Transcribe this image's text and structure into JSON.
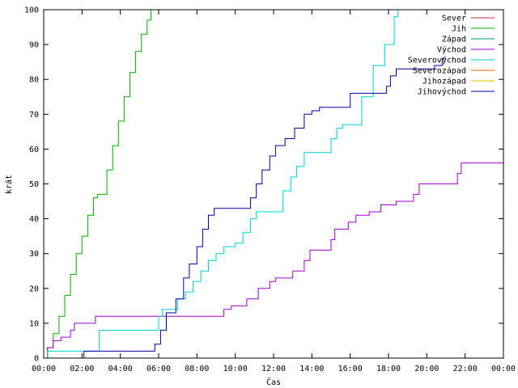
{
  "chart_data": {
    "type": "line",
    "xlabel": "Čas",
    "ylabel": "krát",
    "xlim": [
      0,
      24
    ],
    "ylim": [
      0,
      100
    ],
    "grid": false,
    "legend_position": "top-right",
    "x_ticks": [
      {
        "v": 0,
        "label": "00:00"
      },
      {
        "v": 2,
        "label": "02:00"
      },
      {
        "v": 4,
        "label": "04:00"
      },
      {
        "v": 6,
        "label": "06:00"
      },
      {
        "v": 8,
        "label": "08:00"
      },
      {
        "v": 10,
        "label": "10:00"
      },
      {
        "v": 12,
        "label": "12:00"
      },
      {
        "v": 14,
        "label": "14:00"
      },
      {
        "v": 16,
        "label": "16:00"
      },
      {
        "v": 18,
        "label": "18:00"
      },
      {
        "v": 20,
        "label": "20:00"
      },
      {
        "v": 22,
        "label": "22:00"
      },
      {
        "v": 24,
        "label": "00:00"
      }
    ],
    "y_ticks": [
      {
        "v": 0,
        "label": "0"
      },
      {
        "v": 10,
        "label": "10"
      },
      {
        "v": 20,
        "label": "20"
      },
      {
        "v": 30,
        "label": "30"
      },
      {
        "v": 40,
        "label": "40"
      },
      {
        "v": 50,
        "label": "50"
      },
      {
        "v": 60,
        "label": "60"
      },
      {
        "v": 70,
        "label": "70"
      },
      {
        "v": 80,
        "label": "80"
      },
      {
        "v": 90,
        "label": "90"
      },
      {
        "v": 100,
        "label": "100"
      }
    ],
    "series": [
      {
        "name": "Sever",
        "color": "#c8283c",
        "points": []
      },
      {
        "name": "Jih",
        "color": "#00b000",
        "points": [
          [
            0,
            0
          ],
          [
            0.2,
            3
          ],
          [
            0.5,
            7
          ],
          [
            0.8,
            12
          ],
          [
            1.1,
            18
          ],
          [
            1.4,
            24
          ],
          [
            1.7,
            30
          ],
          [
            2.0,
            35
          ],
          [
            2.3,
            41
          ],
          [
            2.6,
            46
          ],
          [
            2.8,
            47
          ],
          [
            3.0,
            47
          ],
          [
            3.3,
            54
          ],
          [
            3.6,
            61
          ],
          [
            3.9,
            68
          ],
          [
            4.2,
            75
          ],
          [
            4.5,
            82
          ],
          [
            4.8,
            88
          ],
          [
            5.1,
            93
          ],
          [
            5.4,
            97
          ],
          [
            5.6,
            100
          ]
        ]
      },
      {
        "name": "Západ",
        "color": "#008c8c",
        "points": []
      },
      {
        "name": "Východ",
        "color": "#a000c8",
        "points": [
          [
            0,
            0
          ],
          [
            0.2,
            3
          ],
          [
            0.5,
            5
          ],
          [
            0.9,
            6
          ],
          [
            1.4,
            8
          ],
          [
            1.6,
            10
          ],
          [
            2.7,
            12
          ],
          [
            9.2,
            12
          ],
          [
            9.4,
            14
          ],
          [
            9.8,
            15
          ],
          [
            10.6,
            17
          ],
          [
            11.2,
            20
          ],
          [
            11.8,
            22
          ],
          [
            12.1,
            23
          ],
          [
            13.0,
            25
          ],
          [
            13.6,
            28
          ],
          [
            13.9,
            31
          ],
          [
            15.0,
            34
          ],
          [
            15.2,
            37
          ],
          [
            15.9,
            39
          ],
          [
            16.3,
            41
          ],
          [
            17.0,
            42
          ],
          [
            17.6,
            44
          ],
          [
            18.4,
            45
          ],
          [
            19.3,
            47
          ],
          [
            19.6,
            50
          ],
          [
            21.3,
            50
          ],
          [
            21.6,
            53
          ],
          [
            21.8,
            56
          ],
          [
            24,
            56
          ]
        ]
      },
      {
        "name": "Severovýchod",
        "color": "#00d0d0",
        "points": [
          [
            0,
            0
          ],
          [
            0.2,
            2
          ],
          [
            2.6,
            2
          ],
          [
            2.9,
            8
          ],
          [
            5.8,
            8
          ],
          [
            6.0,
            12
          ],
          [
            6.2,
            14
          ],
          [
            6.8,
            14
          ],
          [
            7.0,
            17
          ],
          [
            7.4,
            19
          ],
          [
            7.8,
            22
          ],
          [
            8.2,
            25
          ],
          [
            8.6,
            28
          ],
          [
            9.0,
            30
          ],
          [
            9.4,
            32
          ],
          [
            10.0,
            33
          ],
          [
            10.4,
            36
          ],
          [
            10.8,
            40
          ],
          [
            11.1,
            42
          ],
          [
            12.2,
            42
          ],
          [
            12.5,
            48
          ],
          [
            12.9,
            52
          ],
          [
            13.2,
            55
          ],
          [
            13.6,
            59
          ],
          [
            14.7,
            59
          ],
          [
            15.0,
            63
          ],
          [
            15.3,
            66
          ],
          [
            15.6,
            67
          ],
          [
            16.1,
            67
          ],
          [
            16.6,
            75
          ],
          [
            17.2,
            84
          ],
          [
            17.8,
            90
          ],
          [
            18.3,
            98
          ],
          [
            18.5,
            100
          ]
        ]
      },
      {
        "name": "Severozápad",
        "color": "#e06000",
        "points": []
      },
      {
        "name": "Jihozápad",
        "color": "#e0c000",
        "points": []
      },
      {
        "name": "Jihovýchod",
        "color": "#0000a0",
        "points": [
          [
            0,
            0
          ],
          [
            2.0,
            0
          ],
          [
            2.1,
            2
          ],
          [
            5.6,
            2
          ],
          [
            5.8,
            4
          ],
          [
            6.1,
            8
          ],
          [
            6.4,
            13
          ],
          [
            6.9,
            17
          ],
          [
            7.3,
            23
          ],
          [
            7.6,
            27
          ],
          [
            8.0,
            32
          ],
          [
            8.3,
            37
          ],
          [
            8.6,
            41
          ],
          [
            8.9,
            43
          ],
          [
            10.5,
            43
          ],
          [
            10.8,
            46
          ],
          [
            11.1,
            50
          ],
          [
            11.4,
            54
          ],
          [
            11.8,
            58
          ],
          [
            12.1,
            61
          ],
          [
            12.6,
            63
          ],
          [
            13.1,
            66
          ],
          [
            13.6,
            70
          ],
          [
            14.0,
            71
          ],
          [
            14.4,
            72
          ],
          [
            15.8,
            72
          ],
          [
            16.0,
            76
          ],
          [
            17.6,
            76
          ],
          [
            17.9,
            78
          ],
          [
            18.1,
            81
          ],
          [
            18.4,
            83
          ],
          [
            20.0,
            83
          ],
          [
            20.4,
            84
          ],
          [
            20.8,
            86
          ],
          [
            21.0,
            86
          ]
        ]
      }
    ]
  }
}
